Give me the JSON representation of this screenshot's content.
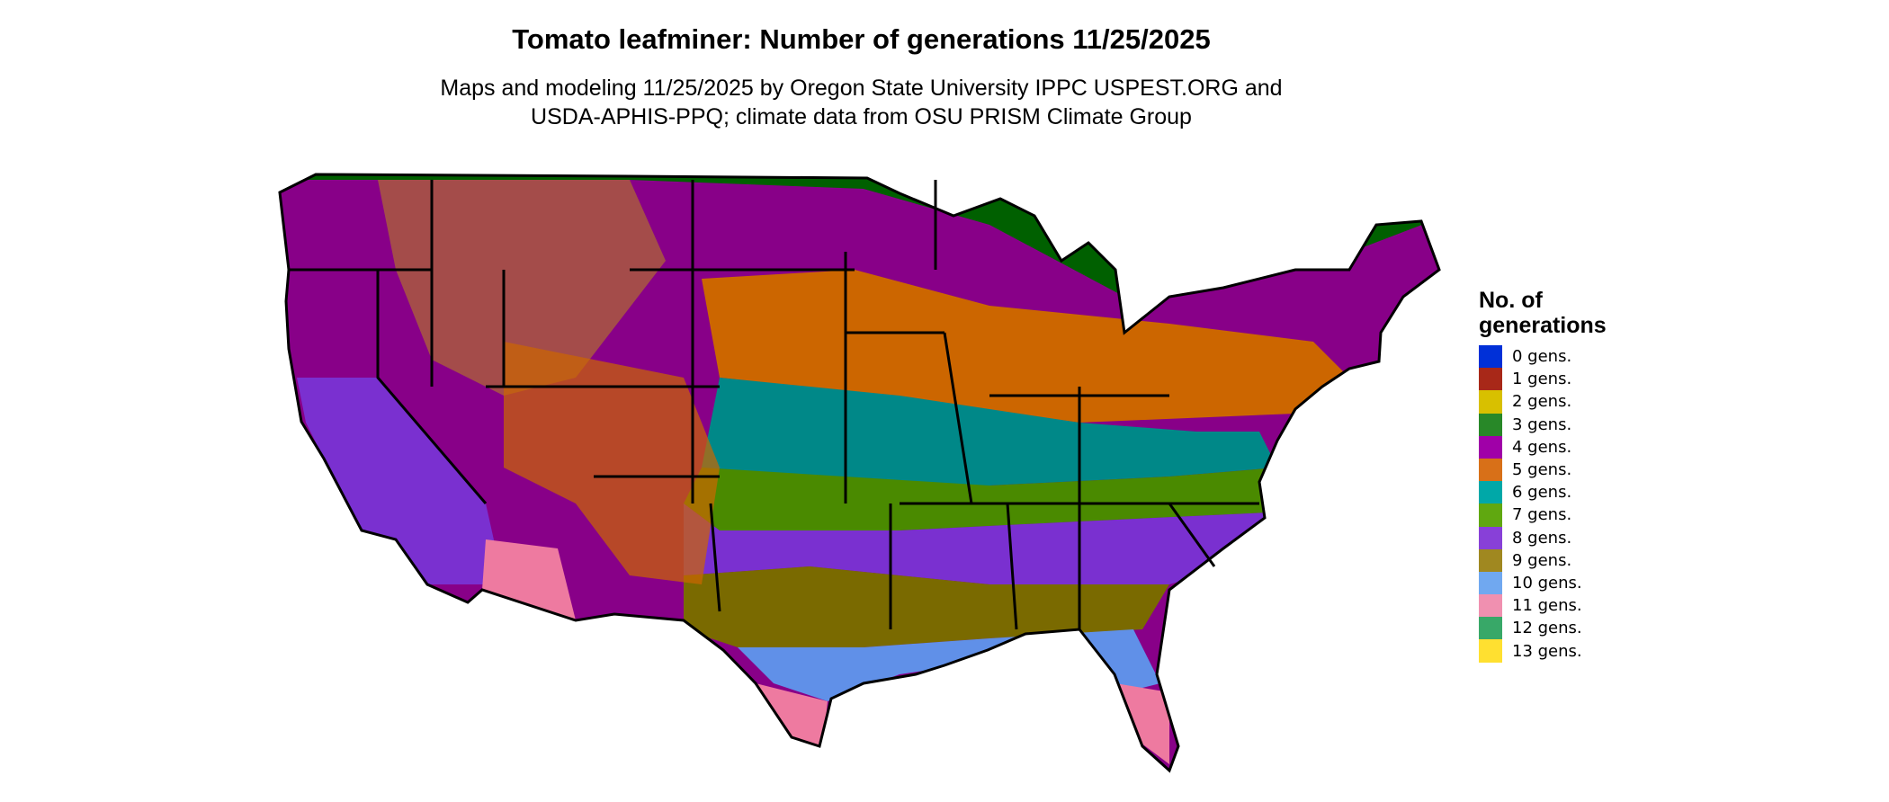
{
  "title": "Tomato leafminer: Number of generations 11/25/2025",
  "subtitle_line1": "Maps and modeling 11/25/2025 by Oregon State University IPPC USPEST.ORG and",
  "subtitle_line2": "USDA-APHIS-PPQ; climate data from OSU PRISM Climate Group",
  "chart_data": {
    "type": "map",
    "region": "Contiguous United States",
    "legend": {
      "title_line1": "No. of",
      "title_line2": "generations",
      "placement": "right",
      "items": [
        {
          "label": "0 gens.",
          "value": 0,
          "color": "#0030d8"
        },
        {
          "label": "1 gens.",
          "value": 1,
          "color": "#a82818"
        },
        {
          "label": "2 gens.",
          "value": 2,
          "color": "#d8c000"
        },
        {
          "label": "3 gens.",
          "value": 3,
          "color": "#288828"
        },
        {
          "label": "4 gens.",
          "value": 4,
          "color": "#a000a8"
        },
        {
          "label": "5 gens.",
          "value": 5,
          "color": "#d87018"
        },
        {
          "label": "6 gens.",
          "value": 6,
          "color": "#00a8a8"
        },
        {
          "label": "7 gens.",
          "value": 7,
          "color": "#60a810"
        },
        {
          "label": "8 gens.",
          "value": 8,
          "color": "#8840d8"
        },
        {
          "label": "9 gens.",
          "value": 9,
          "color": "#a08820"
        },
        {
          "label": "10 gens.",
          "value": 10,
          "color": "#70a8f0"
        },
        {
          "label": "11 gens.",
          "value": 11,
          "color": "#f090b0"
        },
        {
          "label": "12 gens.",
          "value": 12,
          "color": "#38a868"
        },
        {
          "label": "13 gens.",
          "value": 13,
          "color": "#ffe030"
        }
      ]
    }
  }
}
